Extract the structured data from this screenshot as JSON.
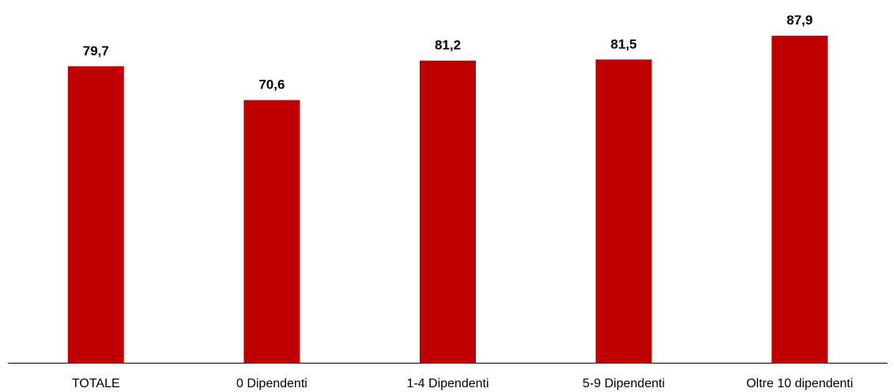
{
  "chart_data": {
    "type": "bar",
    "categories": [
      "TOTALE",
      "0 Dipendenti",
      "1-4 Dipendenti",
      "5-9 Dipendenti",
      "Oltre 10 dipendenti"
    ],
    "values": [
      79.7,
      70.6,
      81.2,
      81.5,
      87.9
    ],
    "value_labels": [
      "79,7",
      "70,6",
      "81,2",
      "81,5",
      "87,9"
    ],
    "title": "",
    "xlabel": "",
    "ylabel": "",
    "ylim": [
      0,
      89
    ],
    "grid": false,
    "legend": "none",
    "bar_color": "#c00000",
    "axis_color": "#000000"
  }
}
